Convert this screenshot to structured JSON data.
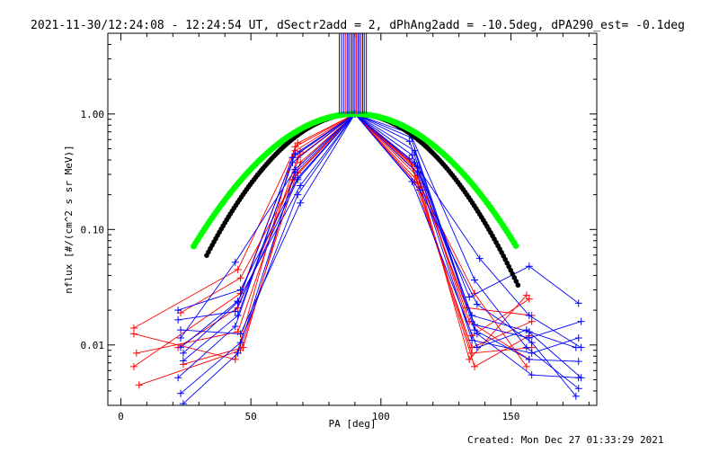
{
  "header": {
    "title": "2021-11-30/12:24:08 - 12:24:54 UT, dSectr2add = 2, dPhAng2add = -10.5deg, dPA290_est= -0.1deg"
  },
  "footer": {
    "created": "Created: Mon Dec 27 01:33:29 2021"
  },
  "chart_data": {
    "type": "line",
    "title": "2021-11-30/12:24:08 - 12:24:54 UT, dSectr2add = 2, dPhAng2add = -10.5deg, dPA290_est= -0.1deg",
    "xlabel": "PA [deg]",
    "ylabel": "nflux [#/(cm^2 s sr MeV)]",
    "xlim": [
      -5,
      183
    ],
    "ylim": [
      0.003,
      5.0
    ],
    "yscale": "log",
    "x_ticks": [
      0,
      50,
      100,
      150
    ],
    "y_ticks": [
      0.01,
      0.1,
      1.0
    ],
    "y_tick_labels": [
      "0.01",
      "0.10",
      "1.00"
    ],
    "grid": false,
    "colors": {
      "red": "#ff0000",
      "blue": "#0000ff",
      "black": "#000000",
      "green": "#00ff00"
    },
    "vertical_lines": {
      "x": [
        84,
        84.8,
        85.6,
        86.3,
        87,
        87.6,
        88.2,
        88.8,
        89.4,
        90,
        90.6,
        91.2,
        91.8,
        92.4,
        93,
        93.6,
        94.4
      ],
      "colors": [
        "blue",
        "blue",
        "blue",
        "red",
        "blue",
        "blue",
        "red",
        "blue",
        "blue",
        "blue",
        "red",
        "blue",
        "blue",
        "red",
        "blue",
        "blue",
        "blue"
      ]
    },
    "series": [
      {
        "color": "red",
        "x": [
          5,
          45,
          68,
          90,
          115,
          135,
          157
        ],
        "y": [
          0.014,
          0.045,
          0.56,
          1.0,
          0.3,
          0.012,
          0.025
        ]
      },
      {
        "color": "red",
        "x": [
          5,
          46,
          67,
          90,
          113,
          135,
          158
        ],
        "y": [
          0.0065,
          0.028,
          0.48,
          1.0,
          0.26,
          0.0095,
          0.016
        ]
      },
      {
        "color": "red",
        "x": [
          6,
          45,
          68,
          90,
          114,
          134,
          157
        ],
        "y": [
          0.0085,
          0.013,
          0.42,
          1.0,
          0.34,
          0.016,
          0.0075
        ]
      },
      {
        "color": "red",
        "x": [
          7,
          46,
          69,
          90,
          112,
          135,
          158
        ],
        "y": [
          0.0045,
          0.009,
          0.38,
          1.0,
          0.36,
          0.0085,
          0.0095
        ]
      },
      {
        "color": "red",
        "x": [
          5,
          44,
          67,
          90,
          116,
          136,
          156
        ],
        "y": [
          0.0125,
          0.0075,
          0.52,
          1.0,
          0.22,
          0.028,
          0.0065
        ]
      },
      {
        "color": "red",
        "x": [
          23,
          46,
          68,
          90,
          111,
          136,
          157
        ],
        "y": [
          0.019,
          0.038,
          0.31,
          1.0,
          0.41,
          0.0065,
          0.012
        ]
      },
      {
        "color": "red",
        "x": [
          22,
          45,
          66,
          90,
          114,
          133,
          158
        ],
        "y": [
          0.0095,
          0.021,
          0.27,
          1.0,
          0.29,
          0.021,
          0.018
        ]
      },
      {
        "color": "red",
        "x": [
          24,
          47,
          69,
          90,
          115,
          134,
          156
        ],
        "y": [
          0.0068,
          0.0095,
          0.47,
          1.0,
          0.25,
          0.0075,
          0.027
        ]
      },
      {
        "color": "blue",
        "x": [
          23,
          44,
          67,
          90,
          112,
          134,
          157,
          176
        ],
        "y": [
          0.0115,
          0.052,
          0.33,
          1.0,
          0.44,
          0.026,
          0.048,
          0.023
        ]
      },
      {
        "color": "blue",
        "x": [
          22,
          46,
          68,
          90,
          113,
          135,
          157,
          175
        ],
        "y": [
          0.02,
          0.03,
          0.28,
          1.0,
          0.38,
          0.018,
          0.013,
          0.0095
        ]
      },
      {
        "color": "blue",
        "x": [
          23,
          45,
          69,
          90,
          111,
          136,
          157,
          177
        ],
        "y": [
          0.0095,
          0.024,
          0.24,
          1.0,
          0.58,
          0.015,
          0.0115,
          0.016
        ]
      },
      {
        "color": "blue",
        "x": [
          24,
          45,
          66,
          90,
          114,
          135,
          158,
          176
        ],
        "y": [
          0.0073,
          0.018,
          0.38,
          1.0,
          0.31,
          0.011,
          0.0085,
          0.0115
        ]
      },
      {
        "color": "blue",
        "x": [
          22,
          44,
          67,
          90,
          112,
          137,
          156,
          177
        ],
        "y": [
          0.0052,
          0.0145,
          0.45,
          1.0,
          0.26,
          0.0095,
          0.0135,
          0.0052
        ]
      },
      {
        "color": "blue",
        "x": [
          23,
          46,
          68,
          90,
          113,
          136,
          157,
          176
        ],
        "y": [
          0.0038,
          0.0105,
          0.2,
          1.0,
          0.48,
          0.0135,
          0.0075,
          0.0072
        ]
      },
      {
        "color": "blue",
        "x": [
          24,
          45,
          67,
          90,
          115,
          137,
          158,
          175
        ],
        "y": [
          0.0031,
          0.0085,
          0.31,
          1.0,
          0.22,
          0.0225,
          0.0105,
          0.0036
        ]
      },
      {
        "color": "blue",
        "x": [
          22,
          44,
          68,
          90,
          112,
          136,
          156,
          176
        ],
        "y": [
          0.0165,
          0.0195,
          0.27,
          1.0,
          0.62,
          0.0365,
          0.0095,
          0.0042
        ]
      },
      {
        "color": "blue",
        "x": [
          23,
          46,
          69,
          90,
          114,
          138,
          157,
          177
        ],
        "y": [
          0.0135,
          0.0125,
          0.17,
          1.0,
          0.35,
          0.056,
          0.018,
          0.0095
        ]
      },
      {
        "color": "blue",
        "x": [
          24,
          45,
          66,
          90,
          111,
          137,
          158,
          176
        ],
        "y": [
          0.0085,
          0.0235,
          0.42,
          1.0,
          0.68,
          0.0125,
          0.0055,
          0.0052
        ]
      }
    ],
    "model_curves": [
      {
        "color": "black",
        "style": "dots",
        "x_from": 33,
        "x_to": 153,
        "peak_x": 90,
        "peak_y": 1.0,
        "sigma": 24.0
      },
      {
        "color": "green",
        "style": "dots",
        "x_from": 28,
        "x_to": 152,
        "peak_x": 90,
        "peak_y": 1.0,
        "sigma": 27.0
      }
    ]
  }
}
